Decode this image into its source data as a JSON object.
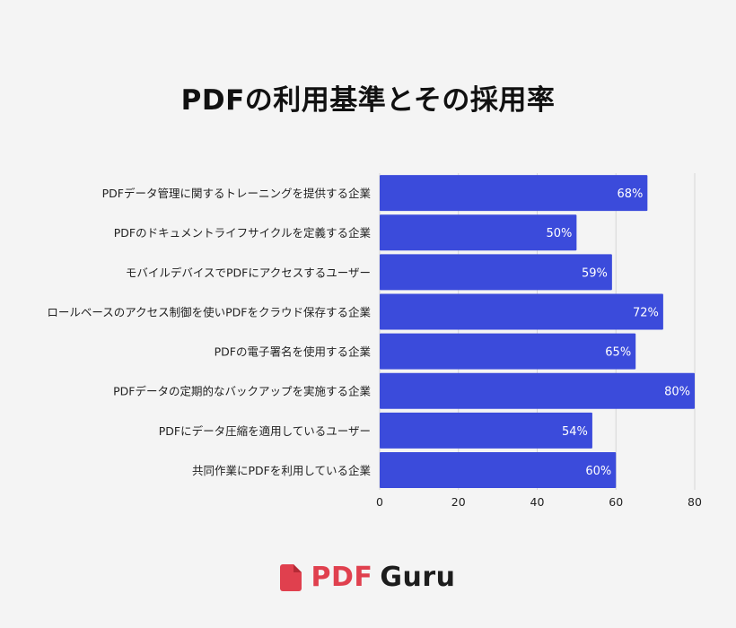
{
  "chart_data": {
    "type": "bar",
    "orientation": "horizontal",
    "title": "PDFの利用基準とその採用率",
    "categories": [
      "PDFデータ管理に関するトレーニングを提供する企業",
      "PDFのドキュメントライフサイクルを定義する企業",
      "モバイルデバイスでPDFにアクセスするユーザー",
      "ロールベースのアクセス制御を使いPDFをクラウド保存する企業",
      "PDFの電子署名を使用する企業",
      "PDFデータの定期的なバックアップを実施する企業",
      "PDFにデータ圧縮を適用しているユーザー",
      "共同作業にPDFを利用している企業"
    ],
    "values": [
      68,
      50,
      59,
      72,
      65,
      80,
      54,
      60
    ],
    "value_labels": [
      "68%",
      "50%",
      "59%",
      "72%",
      "65%",
      "80%",
      "54%",
      "60%"
    ],
    "xlim": [
      0,
      80
    ],
    "xticks": [
      "0",
      "20",
      "40",
      "60",
      "80"
    ],
    "xlabel": "",
    "ylabel": "",
    "grid": "vertical",
    "bar_color": "#3b4bdb"
  },
  "brand": {
    "pdf": "PDF",
    "guru": "Guru",
    "logo": "pdf-guru-logo-icon",
    "accent": "#e0404e"
  }
}
